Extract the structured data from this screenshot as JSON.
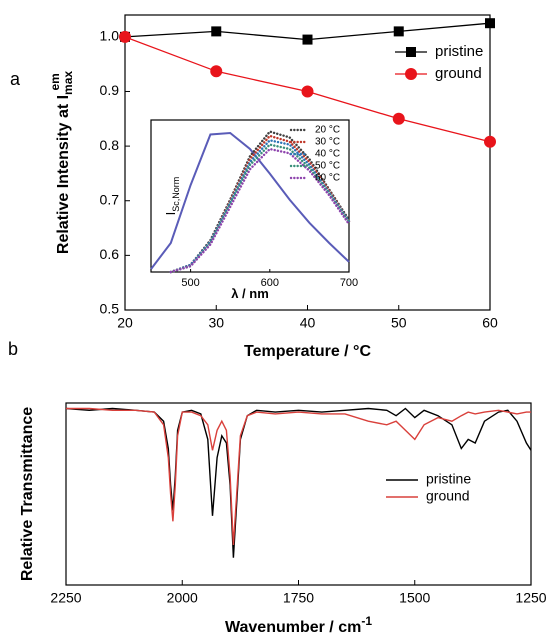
{
  "chart_data": [
    {
      "type": "line",
      "panel_label": "a",
      "x": [
        20,
        30,
        40,
        50,
        60
      ],
      "series": [
        {
          "name": "pristine",
          "color": "#000000",
          "marker": "square",
          "values": [
            1.0,
            1.01,
            0.995,
            1.01,
            1.025
          ]
        },
        {
          "name": "ground",
          "color": "#e8141b",
          "marker": "circle",
          "values": [
            1.0,
            0.937,
            0.9,
            0.85,
            0.808
          ]
        }
      ],
      "xlim": [
        20,
        60
      ],
      "ylim": [
        0.5,
        1.04
      ],
      "xticks": [
        20,
        30,
        40,
        50,
        60
      ],
      "yticks": [
        0.5,
        0.6,
        0.7,
        0.8,
        0.9,
        {
          "value": 1,
          "label": "1.0"
        }
      ],
      "x_label": "Temperature / °C",
      "y_label": "Relative Intensity at I",
      "y_label_sub": "max",
      "y_label_sup": "em",
      "legend": "upper right"
    },
    {
      "type": "line",
      "x": [
        450,
        475,
        500,
        525,
        550,
        575,
        600,
        625,
        650,
        675,
        700
      ],
      "series": [
        {
          "name": "20 °C",
          "color": "#404040",
          "dash": "dotted",
          "values": [
            null,
            0.0,
            0.05,
            0.22,
            0.5,
            0.8,
            0.97,
            0.93,
            0.78,
            0.57,
            0.36
          ]
        },
        {
          "name": "30 °C",
          "color": "#c0392b",
          "dash": "dotted",
          "values": [
            null,
            0.0,
            0.05,
            0.21,
            0.49,
            0.78,
            0.94,
            0.9,
            0.76,
            0.56,
            0.35
          ]
        },
        {
          "name": "40 °C",
          "color": "#2e75b6",
          "dash": "dotted",
          "values": [
            null,
            0.0,
            0.05,
            0.21,
            0.48,
            0.76,
            0.91,
            0.88,
            0.74,
            0.55,
            0.35
          ]
        },
        {
          "name": "50 °C",
          "color": "#3a8f7a",
          "dash": "dotted",
          "values": [
            null,
            0.0,
            0.04,
            0.2,
            0.47,
            0.74,
            0.88,
            0.85,
            0.72,
            0.54,
            0.34
          ]
        },
        {
          "name": "60 °C",
          "color": "#8e44ad",
          "dash": "dotted",
          "values": [
            null,
            0.0,
            0.04,
            0.19,
            0.45,
            0.71,
            0.85,
            0.82,
            0.7,
            0.53,
            0.33
          ]
        }
      ],
      "excitation": {
        "color": "#5a5cb8",
        "values": [
          0.02,
          0.2,
          0.6,
          0.95,
          0.96,
          0.85,
          0.68,
          0.5,
          0.34,
          0.2,
          0.07
        ]
      },
      "xlim": [
        450,
        700
      ],
      "ylim": [
        0,
        1.05
      ],
      "xticks": [
        500,
        600,
        700
      ],
      "x_label": "λ / nm",
      "y_label": "I",
      "y_label_sub": "Sc,Norm",
      "legend": "upper right"
    },
    {
      "type": "line",
      "panel_label": "b",
      "x": [
        2250,
        2200,
        2150,
        2100,
        2060,
        2040,
        2030,
        2025,
        2020,
        2015,
        2010,
        2000,
        1980,
        1960,
        1945,
        1935,
        1925,
        1915,
        1905,
        1897,
        1890,
        1883,
        1875,
        1860,
        1840,
        1800,
        1750,
        1700,
        1650,
        1600,
        1560,
        1540,
        1520,
        1500,
        1480,
        1450,
        1420,
        1400,
        1385,
        1370,
        1350,
        1320,
        1300,
        1280,
        1260,
        1250
      ],
      "series": [
        {
          "name": "pristine",
          "color": "#000000",
          "values": [
            0.97,
            0.96,
            0.97,
            0.96,
            0.95,
            0.9,
            0.75,
            0.55,
            0.41,
            0.6,
            0.85,
            0.95,
            0.96,
            0.94,
            0.8,
            0.38,
            0.7,
            0.82,
            0.78,
            0.55,
            0.15,
            0.45,
            0.8,
            0.93,
            0.96,
            0.95,
            0.96,
            0.95,
            0.96,
            0.97,
            0.96,
            0.93,
            0.97,
            0.92,
            0.96,
            0.93,
            0.88,
            0.75,
            0.8,
            0.78,
            0.9,
            0.95,
            0.96,
            0.9,
            0.78,
            0.74
          ]
        },
        {
          "name": "ground",
          "color": "#d9403b",
          "values": [
            0.97,
            0.97,
            0.96,
            0.96,
            0.95,
            0.88,
            0.7,
            0.5,
            0.35,
            0.55,
            0.82,
            0.95,
            0.95,
            0.93,
            0.88,
            0.74,
            0.85,
            0.9,
            0.85,
            0.6,
            0.22,
            0.5,
            0.82,
            0.93,
            0.95,
            0.94,
            0.95,
            0.94,
            0.94,
            0.9,
            0.88,
            0.9,
            0.85,
            0.8,
            0.88,
            0.92,
            0.9,
            0.93,
            0.95,
            0.94,
            0.95,
            0.96,
            0.95,
            0.94,
            0.95,
            0.95
          ]
        }
      ],
      "xlim": [
        2250,
        1250
      ],
      "ylim": [
        0,
        1
      ],
      "xticks": [
        2250,
        2000,
        1750,
        1500,
        1250
      ],
      "x_label": "Wavenumber / cm",
      "x_label_sup": "-1",
      "y_label": "Relative Transmittance",
      "legend": "lower right"
    }
  ]
}
